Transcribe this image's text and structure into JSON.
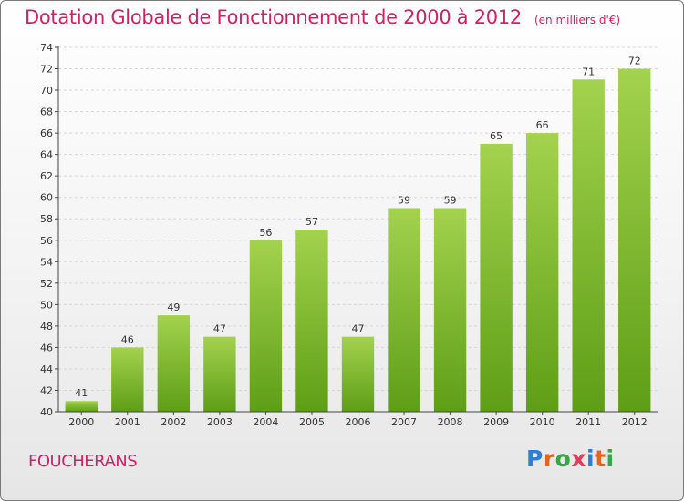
{
  "title": "Dotation Globale de Fonctionnement de 2000 à 2012",
  "subtitle": "(en milliers d'€)",
  "commune": "FOUCHERANS",
  "logo": {
    "letters": [
      "P",
      "r",
      "o",
      "x",
      "i",
      "t",
      "i"
    ],
    "colors": [
      "#2f7fd0",
      "#e2661e",
      "#35a845",
      "#e03a5c",
      "#2f7fd0",
      "#e2661e",
      "#35a845"
    ]
  },
  "colors": {
    "bar_light": "#a3d24e",
    "bar_dark": "#5e9e16",
    "title": "#cc2266"
  },
  "chart_data": {
    "type": "bar",
    "categories": [
      "2000",
      "2001",
      "2002",
      "2003",
      "2004",
      "2005",
      "2006",
      "2007",
      "2008",
      "2009",
      "2010",
      "2011",
      "2012"
    ],
    "values": [
      41,
      46,
      49,
      47,
      56,
      57,
      47,
      59,
      59,
      65,
      66,
      71,
      72
    ],
    "ylim": [
      40,
      74
    ],
    "yticks": [
      40,
      42,
      44,
      46,
      48,
      50,
      52,
      54,
      56,
      58,
      60,
      62,
      64,
      66,
      68,
      70,
      72,
      74
    ],
    "grid": true
  }
}
